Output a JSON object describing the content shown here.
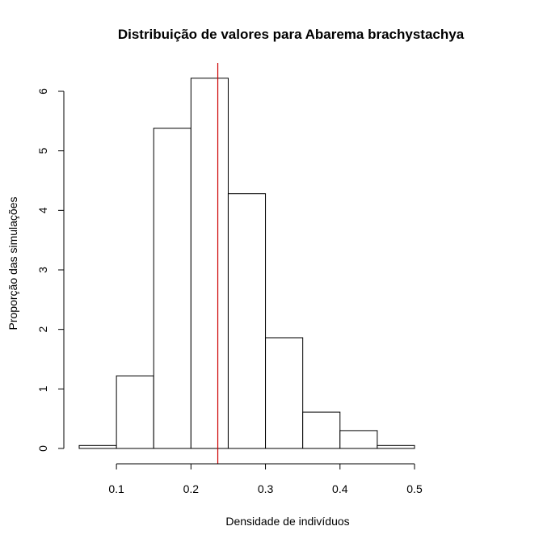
{
  "chart_data": {
    "type": "bar",
    "subtype": "histogram",
    "title": "Distribuição de valores para Abarema brachystachya",
    "xlabel": "Densidade de indivíduos",
    "ylabel": "Proporção das simulações",
    "bins": [
      {
        "start": 0.05,
        "end": 0.1,
        "value": 0.05
      },
      {
        "start": 0.1,
        "end": 0.15,
        "value": 1.22
      },
      {
        "start": 0.15,
        "end": 0.2,
        "value": 5.38
      },
      {
        "start": 0.2,
        "end": 0.25,
        "value": 6.22
      },
      {
        "start": 0.25,
        "end": 0.3,
        "value": 4.28
      },
      {
        "start": 0.3,
        "end": 0.35,
        "value": 1.86
      },
      {
        "start": 0.35,
        "end": 0.4,
        "value": 0.61
      },
      {
        "start": 0.4,
        "end": 0.45,
        "value": 0.3
      },
      {
        "start": 0.45,
        "end": 0.5,
        "value": 0.05
      }
    ],
    "xlim": [
      0.05,
      0.5
    ],
    "ylim": [
      0,
      6.5
    ],
    "x_ticks": [
      0.1,
      0.2,
      0.3,
      0.4,
      0.5
    ],
    "x_tick_labels": [
      "0.1",
      "0.2",
      "0.3",
      "0.4",
      "0.5"
    ],
    "y_ticks": [
      0,
      1,
      2,
      3,
      4,
      5,
      6
    ],
    "y_tick_labels": [
      "0",
      "1",
      "2",
      "3",
      "4",
      "5",
      "6"
    ],
    "reference_line": {
      "x": 0.236,
      "color": "#cc0000"
    },
    "bar_fill": "#ffffff",
    "bar_stroke": "#000000",
    "grid": false,
    "legend": "none"
  }
}
